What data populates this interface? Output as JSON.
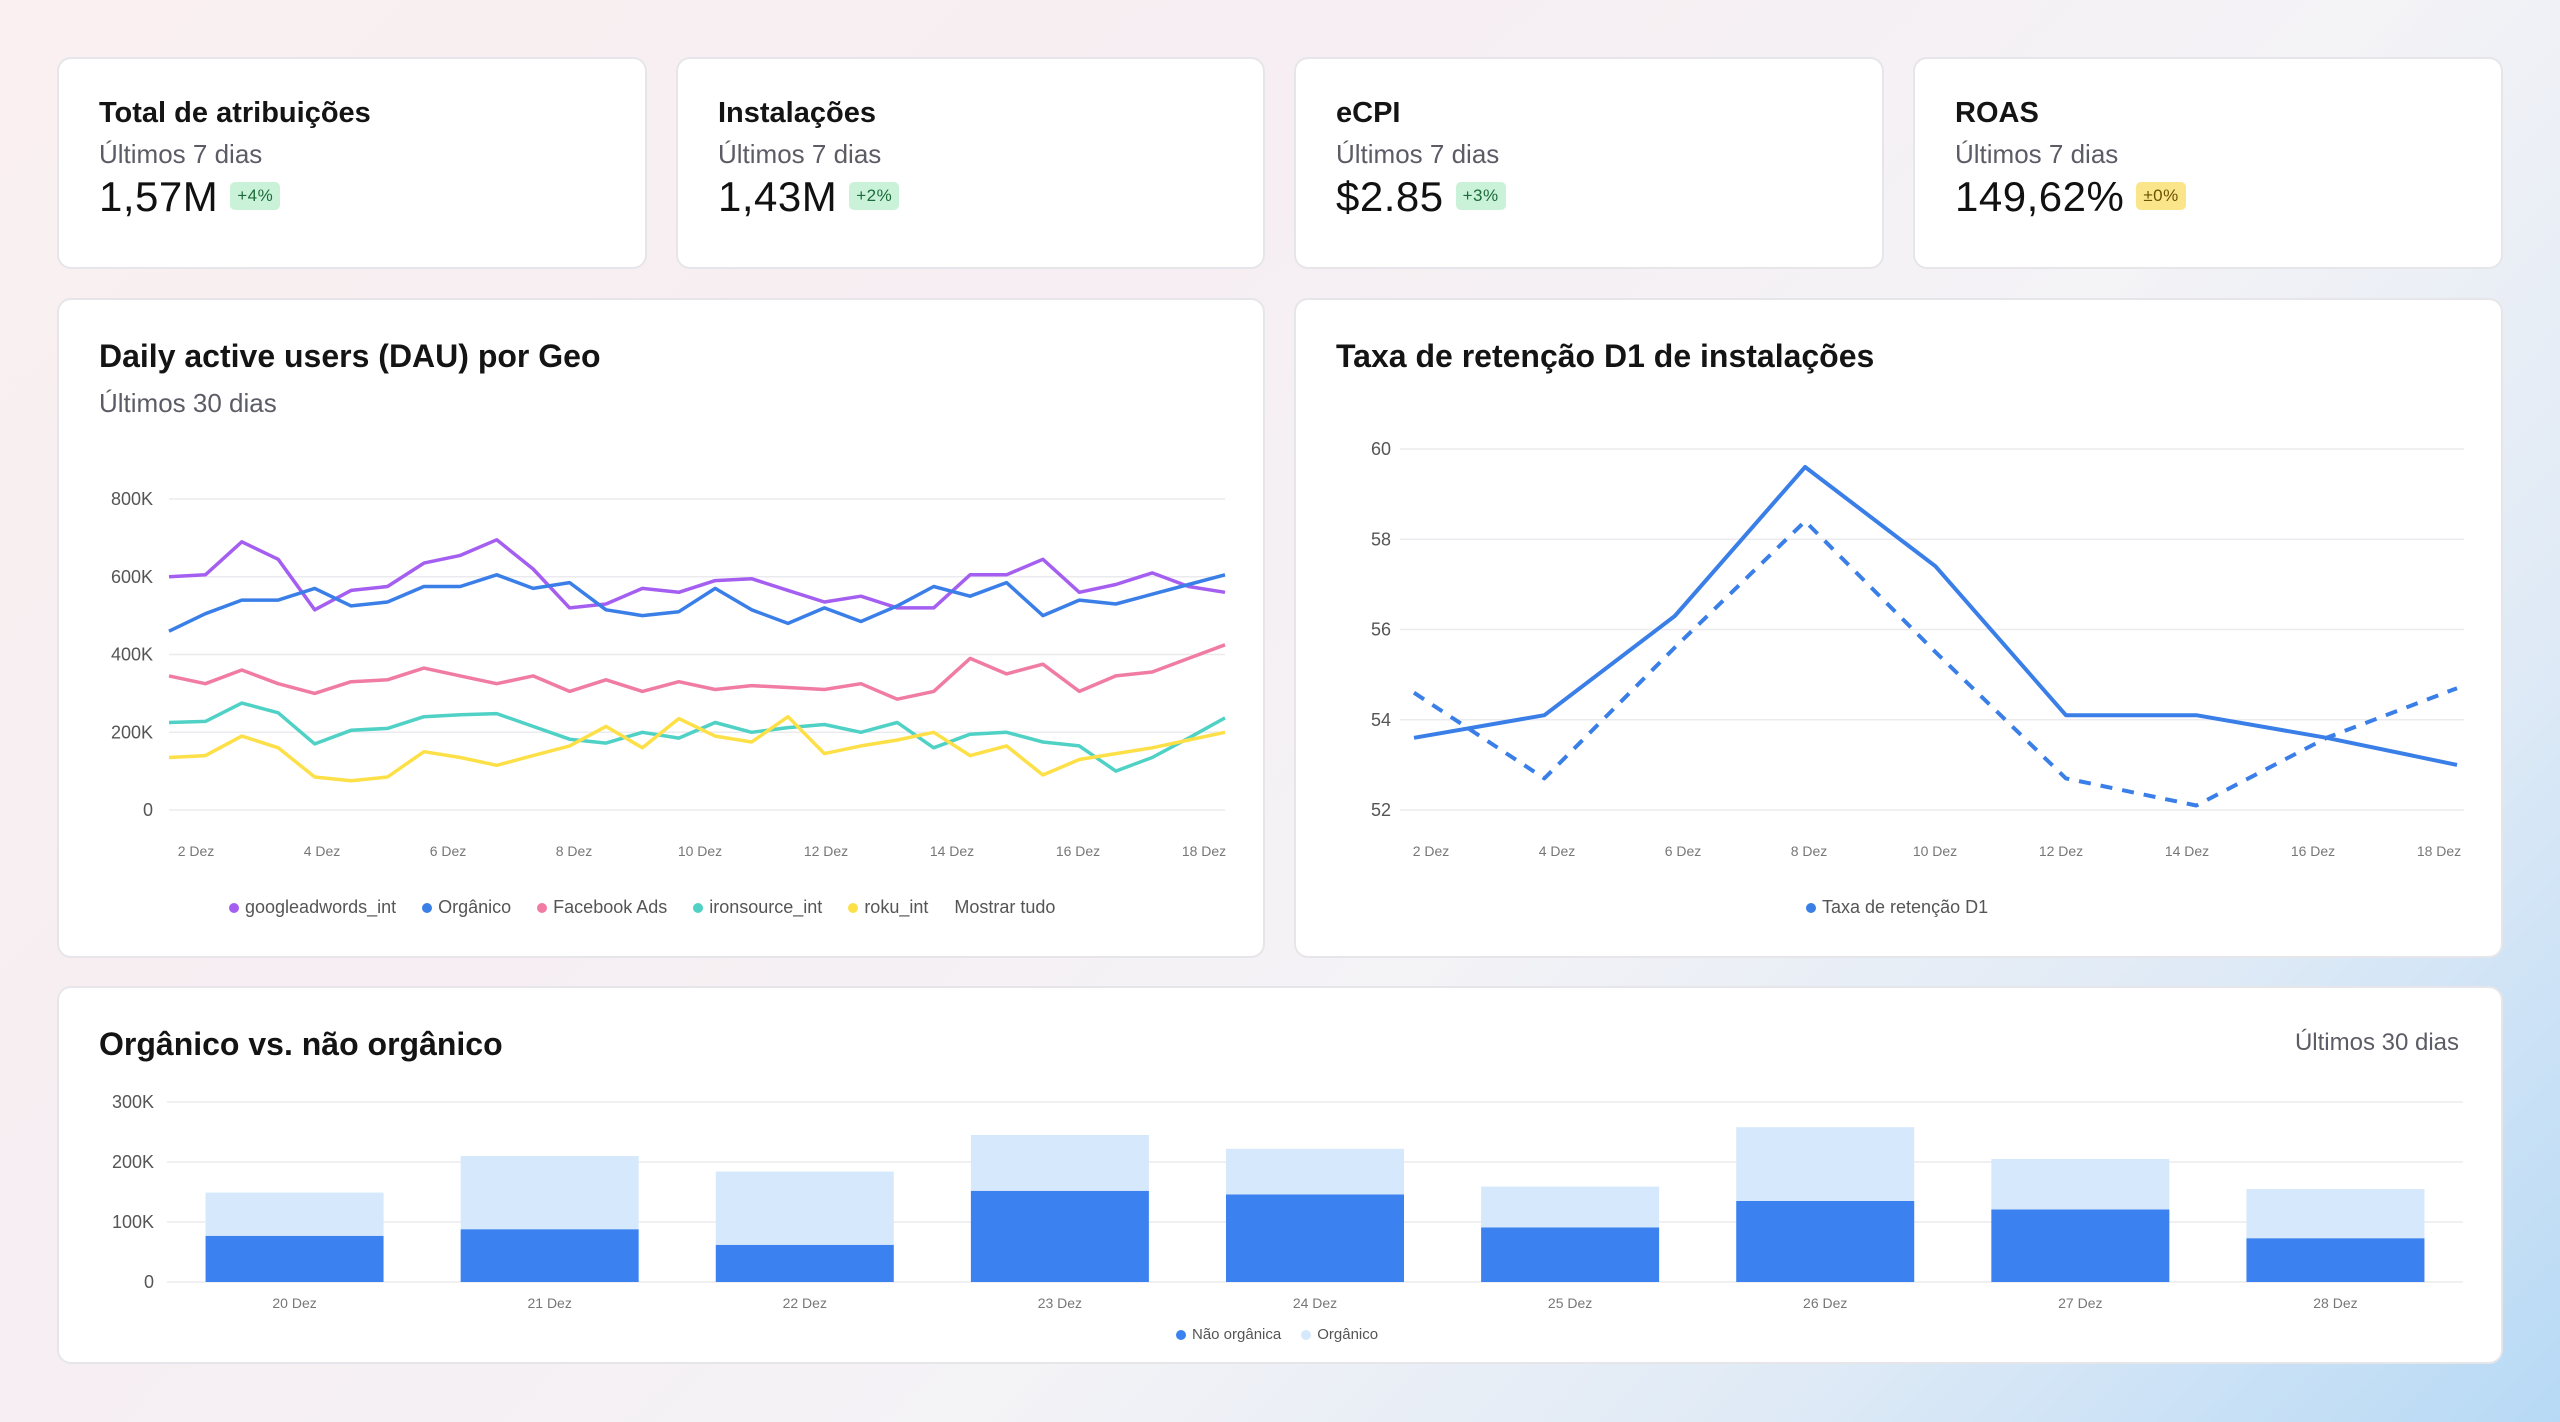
{
  "kpis": [
    {
      "title": "Total de atribuições",
      "subtitle": "Últimos 7 dias",
      "value": "1,57M",
      "delta": "+4%",
      "tone": "green"
    },
    {
      "title": "Instalações",
      "subtitle": "Últimos 7 dias",
      "value": "1,43M",
      "delta": "+2%",
      "tone": "green"
    },
    {
      "title": "eCPI",
      "subtitle": "Últimos 7 dias",
      "value": "$2.85",
      "delta": "+3%",
      "tone": "green"
    },
    {
      "title": "ROAS",
      "subtitle": "Últimos 7 dias",
      "value": "149,62%",
      "delta": "±0%",
      "tone": "yellow"
    }
  ],
  "dau": {
    "title": "Daily active users (DAU) por Geo",
    "subtitle": "Últimos 30 dias",
    "show_all": "Mostrar tudo"
  },
  "retention": {
    "title": "Taxa de retenção D1 de instalações"
  },
  "organic": {
    "title": "Orgânico vs. não orgânico",
    "subtitle": "Últimos 30 dias"
  },
  "chart_data": [
    {
      "id": "dau",
      "type": "line",
      "x_ticks": [
        "2 Dez",
        "4 Dez",
        "6 Dez",
        "8 Dez",
        "10 Dez",
        "12 Dez",
        "14 Dez",
        "16 Dez",
        "18 Dez"
      ],
      "y_ticks": [
        "0",
        "200K",
        "400K",
        "600K",
        "800K"
      ],
      "ylim": [
        0,
        800000
      ],
      "grid": true,
      "legend_position": "bottom",
      "series": [
        {
          "name": "googleadwords_int",
          "color": "#a55ff0",
          "values": [
            600000,
            605000,
            690000,
            645000,
            515000,
            565000,
            575000,
            635000,
            655000,
            695000,
            620000,
            520000,
            530000,
            570000,
            560000,
            590000,
            595000,
            565000,
            535000,
            550000,
            520000,
            520000,
            605000,
            605000,
            645000,
            560000,
            580000,
            610000,
            575000,
            560000
          ]
        },
        {
          "name": "Orgânico",
          "color": "#3a7ee8",
          "values": [
            460000,
            505000,
            540000,
            540000,
            570000,
            525000,
            535000,
            575000,
            575000,
            605000,
            570000,
            585000,
            515000,
            500000,
            510000,
            570000,
            515000,
            480000,
            520000,
            485000,
            525000,
            575000,
            550000,
            585000,
            500000,
            540000,
            530000,
            555000,
            580000,
            605000
          ]
        },
        {
          "name": "Facebook Ads",
          "color": "#f07ca3",
          "values": [
            345000,
            325000,
            360000,
            325000,
            300000,
            330000,
            335000,
            365000,
            345000,
            325000,
            345000,
            305000,
            335000,
            305000,
            330000,
            310000,
            320000,
            315000,
            310000,
            325000,
            285000,
            305000,
            390000,
            350000,
            375000,
            305000,
            345000,
            355000,
            390000,
            425000
          ]
        },
        {
          "name": "ironsource_int",
          "color": "#4fd1c5",
          "values": [
            225000,
            228000,
            275000,
            250000,
            170000,
            205000,
            210000,
            240000,
            245000,
            248000,
            215000,
            182000,
            172000,
            200000,
            185000,
            225000,
            200000,
            212000,
            220000,
            200000,
            225000,
            160000,
            195000,
            200000,
            175000,
            165000,
            100000,
            135000,
            185000,
            237000
          ]
        },
        {
          "name": "roku_int",
          "color": "#fde047",
          "values": [
            135000,
            140000,
            190000,
            160000,
            85000,
            75000,
            85000,
            150000,
            135000,
            115000,
            140000,
            165000,
            215000,
            160000,
            235000,
            190000,
            175000,
            240000,
            145000,
            165000,
            180000,
            200000,
            140000,
            165000,
            90000,
            130000,
            145000,
            160000,
            180000,
            200000
          ]
        }
      ]
    },
    {
      "id": "retention",
      "type": "line",
      "x_ticks": [
        "2 Dez",
        "4 Dez",
        "6 Dez",
        "8 Dez",
        "10 Dez",
        "12 Dez",
        "14 Dez",
        "16 Dez",
        "18 Dez"
      ],
      "y_ticks": [
        "52",
        "54",
        "56",
        "58",
        "60"
      ],
      "ylim": [
        52,
        60
      ],
      "grid": true,
      "legend_position": "bottom",
      "series": [
        {
          "name": "Taxa de retenção D1",
          "color": "#3a7ee8",
          "x": [
            0,
            1,
            2,
            3,
            4,
            5,
            6,
            7,
            8
          ],
          "values": [
            53.6,
            54.1,
            56.3,
            59.6,
            57.4,
            54.1,
            54.1,
            53.6,
            53.0
          ]
        },
        {
          "color": "#3a7ee8",
          "dashed": true,
          "x": [
            0,
            1,
            2,
            3,
            4,
            5,
            6,
            7,
            8
          ],
          "values": [
            54.6,
            52.7,
            55.6,
            58.4,
            55.5,
            52.7,
            52.1,
            53.6,
            54.7
          ]
        }
      ]
    },
    {
      "id": "organic",
      "type": "bar",
      "stacked": true,
      "categories": [
        "20 Dez",
        "21 Dez",
        "22 Dez",
        "23 Dez",
        "24 Dez",
        "25 Dez",
        "26 Dez",
        "27 Dez",
        "28 Dez"
      ],
      "y_ticks": [
        "0",
        "100K",
        "200K",
        "300K"
      ],
      "ylim": [
        0,
        300000
      ],
      "grid": true,
      "legend_position": "bottom",
      "series": [
        {
          "name": "Não orgânica",
          "color": "#3b82f0",
          "values": [
            77000,
            88000,
            62000,
            152000,
            146000,
            91000,
            135000,
            121000,
            73000
          ]
        },
        {
          "name": "Orgânico",
          "color": "#d6e8fb",
          "values": [
            72000,
            122000,
            122000,
            93000,
            76000,
            68000,
            123000,
            84000,
            82000
          ]
        }
      ]
    }
  ]
}
